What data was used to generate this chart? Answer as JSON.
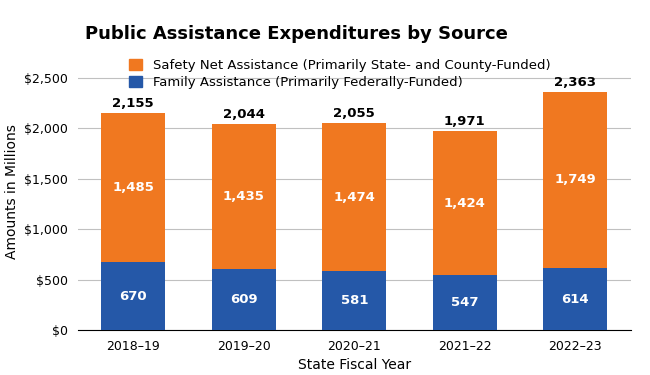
{
  "title": "Public Assistance Expenditures by Source",
  "xlabel": "State Fiscal Year",
  "ylabel": "Amounts in Millions",
  "categories": [
    "2018–19",
    "2019–20",
    "2020–21",
    "2021–22",
    "2022–23"
  ],
  "family_assistance": [
    670,
    609,
    581,
    547,
    614
  ],
  "safety_net": [
    1485,
    1435,
    1474,
    1424,
    1749
  ],
  "totals": [
    2155,
    2044,
    2055,
    1971,
    2363
  ],
  "family_color": "#2558A8",
  "safety_net_color": "#F07820",
  "bar_width": 0.58,
  "ylim": [
    0,
    2750
  ],
  "yticks": [
    0,
    500,
    1000,
    1500,
    2000,
    2500
  ],
  "ytick_labels": [
    "$0",
    "$500",
    "$1,000",
    "$1,500",
    "$2,000",
    "$2,500"
  ],
  "legend_labels": [
    "Safety Net Assistance (Primarily State- and County-Funded)",
    "Family Assistance (Primarily Federally-Funded)"
  ],
  "header_bg_color": "#D8D8D8",
  "plot_bg_color": "#FFFFFF",
  "figure_bg_color": "#FFFFFF",
  "grid_color": "#C0C0C0",
  "title_fontsize": 13,
  "axis_label_fontsize": 10,
  "tick_fontsize": 9,
  "legend_fontsize": 9.5,
  "bar_label_fontsize": 9.5,
  "total_label_fontsize": 9.5
}
